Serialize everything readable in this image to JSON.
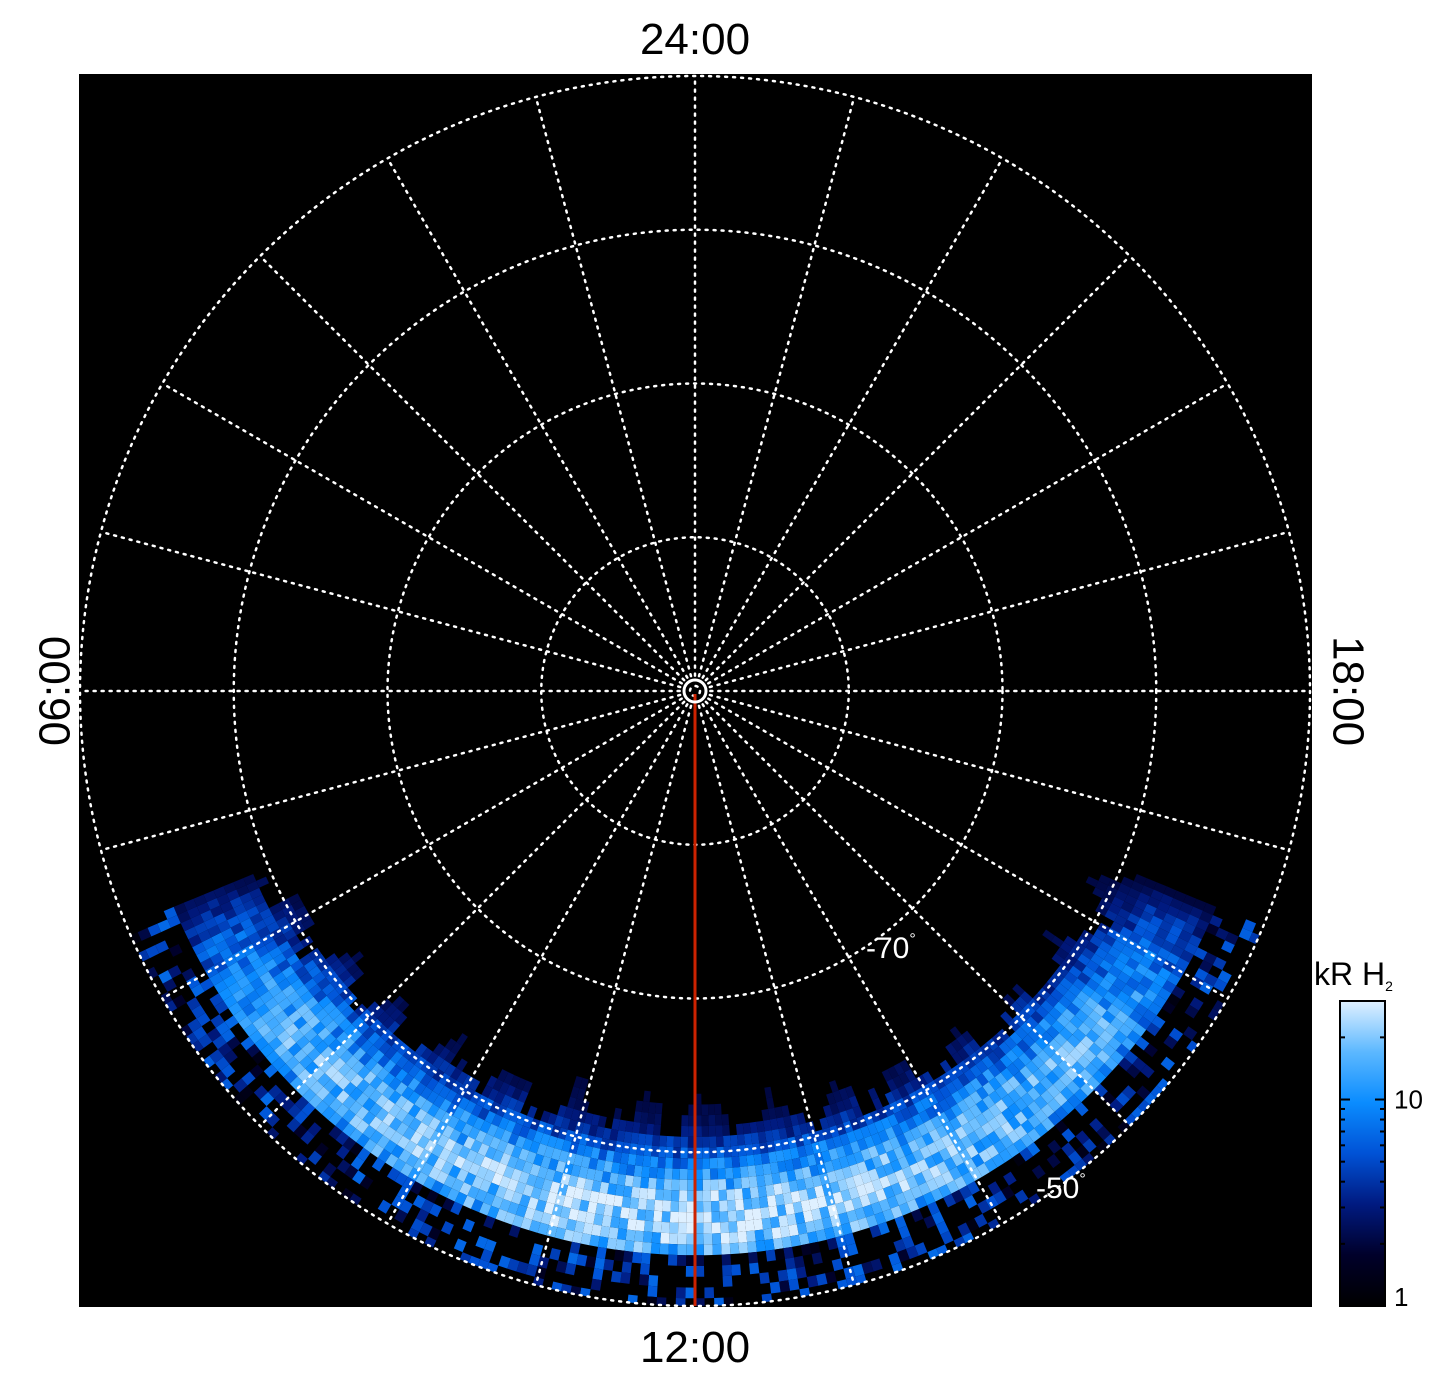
{
  "chart_data": {
    "type": "heatmap",
    "projection": "polar, south pole centred",
    "local_time_labels": {
      "top": "24:00",
      "bottom": "12:00",
      "left": "06:00",
      "right": "18:00"
    },
    "latitude_circles": [
      -90,
      -80,
      -70,
      -60,
      -50
    ],
    "latitude_labels": [
      {
        "text": "-70",
        "unit": "°"
      },
      {
        "text": "-50",
        "unit": "°"
      }
    ],
    "meridian_step_hours": 1,
    "grid": true,
    "grid_style": "dotted white",
    "colorbar": {
      "title": "kR H",
      "title_subscript": "2",
      "scale": "log",
      "range": [
        1,
        30
      ],
      "ticks": [
        {
          "value": 1,
          "label": "1"
        },
        {
          "value": 10,
          "label": "10"
        }
      ],
      "colormap": [
        "#000000",
        "#00002a",
        "#001a80",
        "#0052d6",
        "#0a8cff",
        "#5cb8ff",
        "#dff0ff"
      ]
    },
    "marker_line": {
      "local_time": "12:00",
      "from_latitude": -90,
      "to_latitude": -50,
      "color": "#cc2200"
    },
    "emission_band": {
      "lt_start_hours": 7.5,
      "lt_end_hours": 16.5,
      "colatitude_peak_deg": 34,
      "colatitude_range_deg": [
        22,
        40
      ],
      "peak_intensity_kR": 28
    }
  }
}
